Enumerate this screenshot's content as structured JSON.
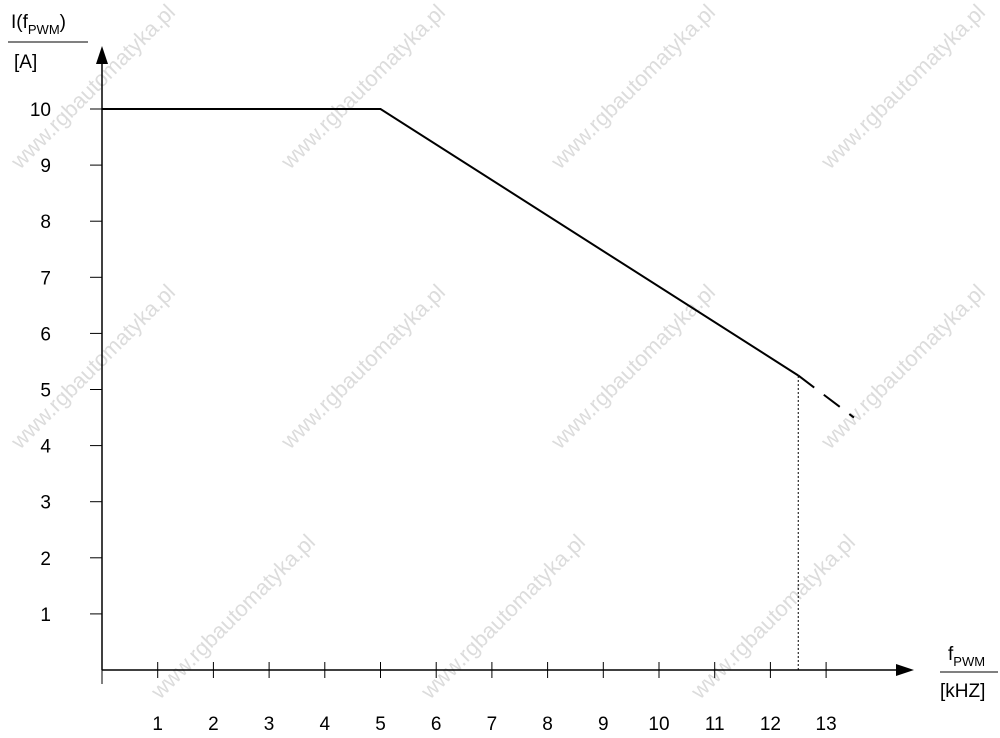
{
  "watermark": "www.rgbautomatyka.pl",
  "chart_data": {
    "type": "line",
    "title": "",
    "ylabel": {
      "main": "I(f",
      "sub": "PWM",
      "close": ")",
      "unit": "[A]"
    },
    "xlabel": {
      "main": "f",
      "sub": "PWM",
      "unit": "[kHZ]"
    },
    "xlim": [
      0,
      14
    ],
    "ylim": [
      0,
      10.5
    ],
    "x_ticks": [
      1,
      2,
      3,
      4,
      5,
      6,
      7,
      8,
      9,
      10,
      11,
      12,
      13
    ],
    "y_ticks": [
      1,
      2,
      3,
      4,
      5,
      6,
      7,
      8,
      9,
      10
    ],
    "grid": false,
    "series": [
      {
        "style": "solid",
        "x": [
          0,
          5,
          12.5
        ],
        "y": [
          10,
          10,
          5.25
        ]
      },
      {
        "style": "dashed",
        "x": [
          12.5,
          13.5
        ],
        "y": [
          5.25,
          4.5
        ]
      }
    ],
    "markers": [
      {
        "type": "vertical-dotted",
        "x": 12.5,
        "y_from": 0,
        "y_to": 5.25
      }
    ]
  }
}
